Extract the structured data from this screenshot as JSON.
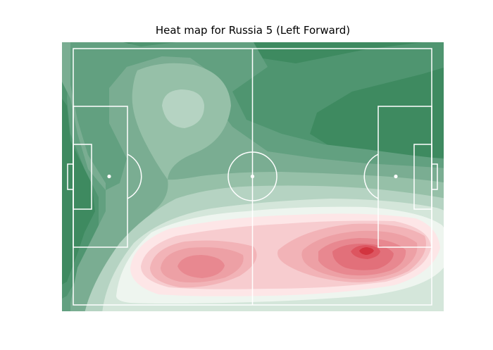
{
  "chart_data": {
    "type": "heatmap",
    "title": "Heat map for Russia 5 (Left Forward)",
    "xlabel": "",
    "ylabel": "",
    "legend": "none",
    "colormap": {
      "low": "#3e8a60",
      "mid": "#f2f5f2",
      "high": "#d2343f",
      "levels": [
        "#3e8a60",
        "#4f9570",
        "#62a080",
        "#7aad92",
        "#96c0a8",
        "#b5d3c2",
        "#d4e6da",
        "#eef5ef",
        "#fde6e7",
        "#f7cccf",
        "#f2b3b7",
        "#eda0a5",
        "#e88890",
        "#e2707a",
        "#dd5560",
        "#d2343f"
      ]
    },
    "field": {
      "line_color": "#ffffff"
    },
    "hotspots": [
      {
        "name": "primary",
        "level": 15,
        "description_value": "highest density in right half below centre"
      },
      {
        "name": "secondary",
        "level": 11,
        "description_value": "second peak in left half below centre"
      },
      {
        "name": "light-patch",
        "level": 5,
        "description_value": "light patch in upper left half"
      }
    ]
  }
}
